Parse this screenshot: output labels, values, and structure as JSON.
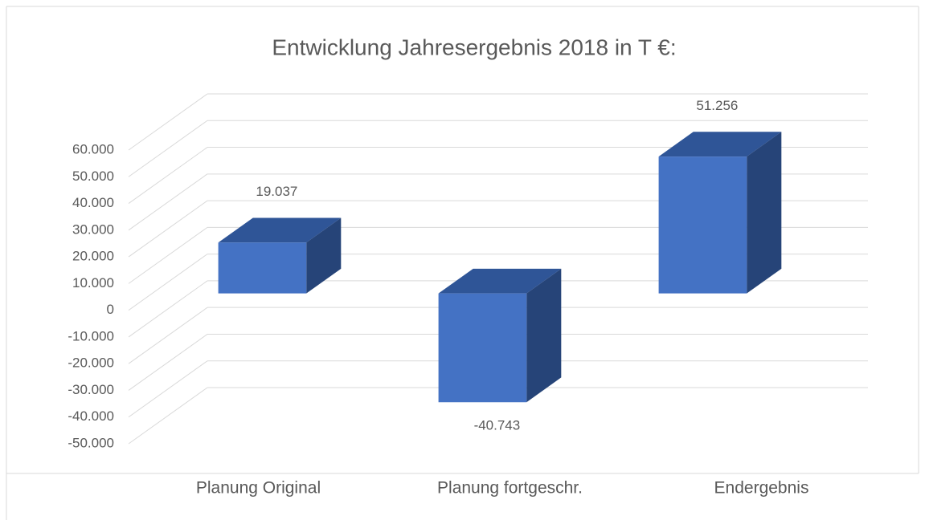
{
  "chart_data": {
    "type": "bar3d",
    "title": "Entwicklung Jahresergebnis 2018 in T €:",
    "categories": [
      "Planung Original",
      "Planung fortgeschr.",
      "Endergebnis"
    ],
    "values": [
      19037,
      -40743,
      51256
    ],
    "value_labels": [
      "19.037",
      "-40.743",
      "51.256"
    ],
    "color": "#4472c4",
    "ylim": [
      -50000,
      60000
    ],
    "yticks": [
      {
        "value": -50000,
        "label": "-50.000"
      },
      {
        "value": -40000,
        "label": "-40.000"
      },
      {
        "value": -30000,
        "label": "-30.000"
      },
      {
        "value": -20000,
        "label": "-20.000"
      },
      {
        "value": -10000,
        "label": "-10.000"
      },
      0,
      {
        "value": 10000,
        "label": "10.000"
      },
      {
        "value": 20000,
        "label": "20.000"
      },
      {
        "value": 30000,
        "label": "30.000"
      },
      {
        "value": 40000,
        "label": "40.000"
      },
      {
        "value": 50000,
        "label": "50.000"
      },
      {
        "value": 60000,
        "label": "60.000"
      }
    ],
    "grid": true
  }
}
